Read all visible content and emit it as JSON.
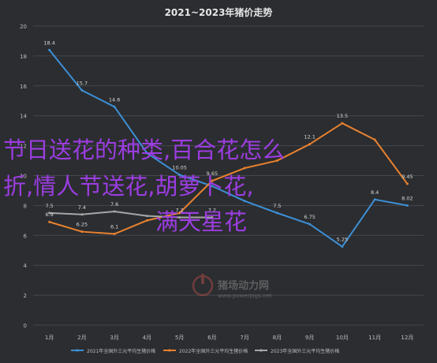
{
  "chart_data": {
    "type": "line",
    "title": "2021~2023年猪价走势",
    "categories": [
      "1月",
      "2月",
      "3月",
      "4月",
      "5月",
      "6月",
      "7月",
      "8月",
      "9月",
      "10月",
      "11月",
      "12月"
    ],
    "ylim": [
      0,
      20
    ],
    "y_ticks": [
      "0",
      "2",
      "4",
      "6",
      "8",
      "10",
      "12",
      "14",
      "16",
      "18",
      "20"
    ],
    "grid": true,
    "legend_position": "bottom",
    "series": [
      {
        "name": "2021年全国外三元平均生猪价格",
        "color": "#3d8fd6",
        "values": [
          18.4,
          15.7,
          14.6,
          11.5,
          10.05,
          9.3,
          8.3,
          7.5,
          6.75,
          5.25,
          8.4,
          8.0
        ]
      },
      {
        "name": "2022年全国外三元平均生猪价格",
        "color": "#e8812f",
        "values": [
          6.9,
          6.25,
          6.1,
          7.0,
          7.5,
          9.65,
          10.5,
          11.0,
          12.1,
          13.5,
          12.4,
          9.45
        ]
      },
      {
        "name": "2023年全国外三元平均生猪价格",
        "color": "#a6a6a6",
        "values": [
          7.5,
          7.4,
          7.6,
          7.3,
          7.2,
          7.2,
          null,
          null,
          null,
          null,
          null,
          null
        ]
      }
    ],
    "data_labels": {
      "0": [
        "18.4",
        "15.7",
        "14.6",
        "",
        "10.05",
        "",
        "",
        "7.5",
        "6.75",
        "5.25",
        "8.4",
        "8.02"
      ],
      "1": [
        "6.9",
        "6.25",
        "6.1",
        "",
        "",
        "9.65",
        "",
        "",
        "12.1",
        "13.5",
        "",
        "9.45"
      ],
      "2": [
        "7.5",
        "7.4",
        "7.6",
        "",
        "7.2",
        "7.2",
        "",
        "",
        "",
        "",
        "",
        ""
      ]
    }
  },
  "watermark": {
    "name": "猪场动力网",
    "url": "www.powerpigs.net"
  },
  "overlay": {
    "line1": "节日送花的种类,百合花怎么",
    "line2": "折,情人节送花,胡萝卜花,",
    "line3": "满天星花",
    "color": "#9b3de0"
  }
}
